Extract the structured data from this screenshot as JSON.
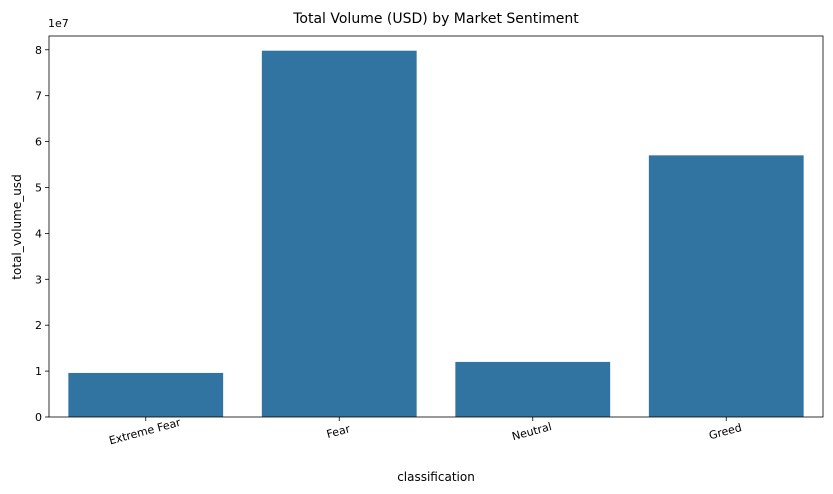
{
  "chart_data": {
    "type": "bar",
    "title": "Total Volume (USD) by Market Sentiment",
    "xlabel": "classification",
    "ylabel": "total_volume_usd",
    "categories": [
      "Extreme Fear",
      "Fear",
      "Neutral",
      "Greed"
    ],
    "values": [
      9600000,
      79800000,
      12000000,
      57000000
    ],
    "ylim": [
      0,
      83000000
    ],
    "yticks": [
      0,
      1,
      2,
      3,
      4,
      5,
      6,
      7,
      8
    ],
    "y_multiplier_label": "1e7",
    "x_tick_rotation": "slanted",
    "bar_color": "#3274a1",
    "grid": false
  }
}
